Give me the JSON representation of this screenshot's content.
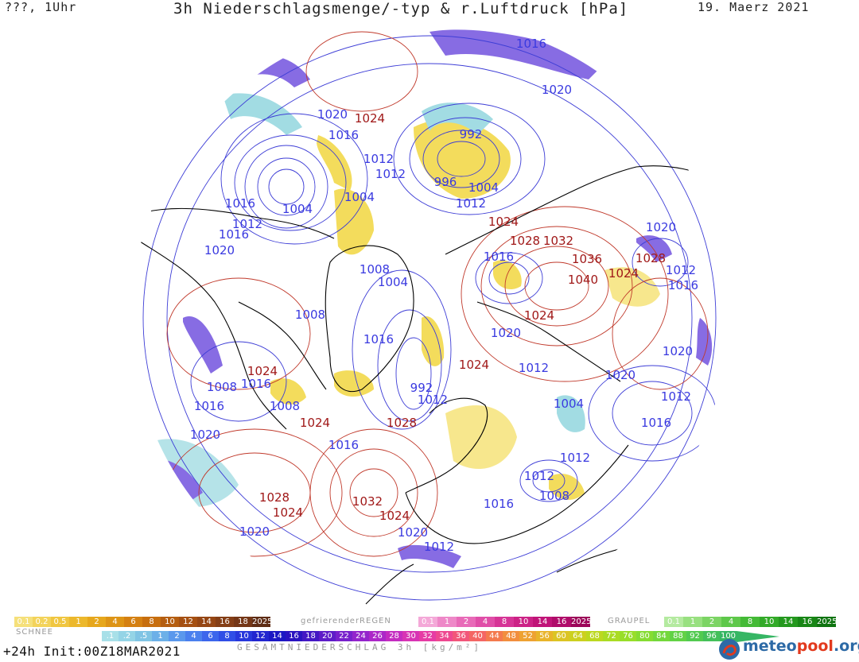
{
  "header": {
    "top_left": "???, 1Uhr",
    "title": "3h Niederschlagsmenge/-typ & r.Luftdruck [hPa]",
    "date": "19. Maerz 2021"
  },
  "pressure_labels": [
    {
      "text": "1016",
      "kind": "low"
    },
    {
      "text": "1020",
      "kind": "low"
    },
    {
      "text": "1020",
      "kind": "low"
    },
    {
      "text": "1024",
      "kind": "high"
    },
    {
      "text": "1016",
      "kind": "low"
    },
    {
      "text": "992",
      "kind": "low"
    },
    {
      "text": "1012",
      "kind": "low"
    },
    {
      "text": "1012",
      "kind": "low"
    },
    {
      "text": "996",
      "kind": "low"
    },
    {
      "text": "1004",
      "kind": "low"
    },
    {
      "text": "1004",
      "kind": "low"
    },
    {
      "text": "1012",
      "kind": "low"
    },
    {
      "text": "1004",
      "kind": "low"
    },
    {
      "text": "1016",
      "kind": "low"
    },
    {
      "text": "1012",
      "kind": "low"
    },
    {
      "text": "1016",
      "kind": "low"
    },
    {
      "text": "1020",
      "kind": "low"
    },
    {
      "text": "1024",
      "kind": "high"
    },
    {
      "text": "1028",
      "kind": "high"
    },
    {
      "text": "1032",
      "kind": "high"
    },
    {
      "text": "1016",
      "kind": "low"
    },
    {
      "text": "1036",
      "kind": "high"
    },
    {
      "text": "1028",
      "kind": "high"
    },
    {
      "text": "1020",
      "kind": "low"
    },
    {
      "text": "1040",
      "kind": "high"
    },
    {
      "text": "1024",
      "kind": "high"
    },
    {
      "text": "1012",
      "kind": "low"
    },
    {
      "text": "1016",
      "kind": "low"
    },
    {
      "text": "1008",
      "kind": "low"
    },
    {
      "text": "1004",
      "kind": "low"
    },
    {
      "text": "1008",
      "kind": "low"
    },
    {
      "text": "1024",
      "kind": "high"
    },
    {
      "text": "1016",
      "kind": "low"
    },
    {
      "text": "1020",
      "kind": "low"
    },
    {
      "text": "1024",
      "kind": "high"
    },
    {
      "text": "1024",
      "kind": "high"
    },
    {
      "text": "1020",
      "kind": "low"
    },
    {
      "text": "1012",
      "kind": "low"
    },
    {
      "text": "1008",
      "kind": "low"
    },
    {
      "text": "1016",
      "kind": "low"
    },
    {
      "text": "1008",
      "kind": "low"
    },
    {
      "text": "1016",
      "kind": "low"
    },
    {
      "text": "992",
      "kind": "low"
    },
    {
      "text": "1012",
      "kind": "low"
    },
    {
      "text": "1020",
      "kind": "low"
    },
    {
      "text": "1012",
      "kind": "low"
    },
    {
      "text": "1004",
      "kind": "low"
    },
    {
      "text": "1012",
      "kind": "low"
    },
    {
      "text": "1016",
      "kind": "low"
    },
    {
      "text": "1024",
      "kind": "high"
    },
    {
      "text": "1028",
      "kind": "high"
    },
    {
      "text": "1020",
      "kind": "low"
    },
    {
      "text": "1012",
      "kind": "low"
    },
    {
      "text": "1008",
      "kind": "low"
    },
    {
      "text": "1016",
      "kind": "low"
    },
    {
      "text": "1016",
      "kind": "low"
    },
    {
      "text": "1028",
      "kind": "high"
    },
    {
      "text": "1024",
      "kind": "high"
    },
    {
      "text": "1032",
      "kind": "high"
    },
    {
      "text": "1024",
      "kind": "high"
    },
    {
      "text": "1020",
      "kind": "low"
    },
    {
      "text": "1012",
      "kind": "low"
    },
    {
      "text": "1020",
      "kind": "low"
    }
  ],
  "legend": {
    "snow": {
      "tag": "SCHNEE",
      "cells": [
        {
          "t": "0.1",
          "c": "#f5e07a"
        },
        {
          "t": "0.2",
          "c": "#f3d35a"
        },
        {
          "t": "0.5",
          "c": "#f0c640"
        },
        {
          "t": "1",
          "c": "#ecb82c"
        },
        {
          "t": "2",
          "c": "#e6a71c"
        },
        {
          "t": "4",
          "c": "#dd9416"
        },
        {
          "t": "6",
          "c": "#d48012"
        },
        {
          "t": "8",
          "c": "#c76e0e"
        },
        {
          "t": "10",
          "c": "#b55e10"
        },
        {
          "t": "12",
          "c": "#a55012"
        },
        {
          "t": "14",
          "c": "#954614"
        },
        {
          "t": "16",
          "c": "#843e16"
        },
        {
          "t": "18",
          "c": "#743616"
        },
        {
          "t": "2025+",
          "c": "#5e2c14"
        }
      ]
    },
    "freezing_rain": {
      "tag": "gefrierenderREGEN",
      "cells": [
        {
          "t": "0.1",
          "c": "#f4a8d8"
        },
        {
          "t": "1",
          "c": "#ee88c8"
        },
        {
          "t": "2",
          "c": "#e86ab8"
        },
        {
          "t": "4",
          "c": "#e04ea8"
        },
        {
          "t": "8",
          "c": "#d63496"
        },
        {
          "t": "10",
          "c": "#cc2286"
        },
        {
          "t": "14",
          "c": "#c01478"
        },
        {
          "t": "16",
          "c": "#b00c6a"
        },
        {
          "t": "2025+",
          "c": "#9c0658"
        }
      ]
    },
    "graupel": {
      "tag": "GRAUPEL",
      "cells": [
        {
          "t": "0.1",
          "c": "#b4eaa0"
        },
        {
          "t": "1",
          "c": "#98e080"
        },
        {
          "t": "2",
          "c": "#7cd464"
        },
        {
          "t": "4",
          "c": "#5ec84a"
        },
        {
          "t": "8",
          "c": "#44ba36"
        },
        {
          "t": "10",
          "c": "#32aa28"
        },
        {
          "t": "14",
          "c": "#24981e"
        },
        {
          "t": "16",
          "c": "#188616"
        },
        {
          "t": "2025+",
          "c": "#0e7410"
        }
      ]
    },
    "total": {
      "tag": "GESAMTNIEDERSCHLAG 3h [kg/m²]",
      "cells": [
        {
          "t": ".1",
          "c": "#a8e0e8"
        },
        {
          "t": ".2",
          "c": "#94d4e6"
        },
        {
          "t": ".5",
          "c": "#80c4e4"
        },
        {
          "t": "1",
          "c": "#6cb0e8"
        },
        {
          "t": "2",
          "c": "#5a98ec"
        },
        {
          "t": "4",
          "c": "#4a80ee"
        },
        {
          "t": "6",
          "c": "#3c66ec"
        },
        {
          "t": "8",
          "c": "#304ee6"
        },
        {
          "t": "10",
          "c": "#2838dc"
        },
        {
          "t": "12",
          "c": "#2226d0"
        },
        {
          "t": "14",
          "c": "#1c18c4"
        },
        {
          "t": "16",
          "c": "#2a14c0"
        },
        {
          "t": "18",
          "c": "#4418c4"
        },
        {
          "t": "20",
          "c": "#5e1cc8"
        },
        {
          "t": "22",
          "c": "#7820cc"
        },
        {
          "t": "24",
          "c": "#9424cc"
        },
        {
          "t": "26",
          "c": "#ac28c8"
        },
        {
          "t": "28",
          "c": "#c42cc0"
        },
        {
          "t": "30",
          "c": "#d834b4"
        },
        {
          "t": "32",
          "c": "#e63ca4"
        },
        {
          "t": "34",
          "c": "#ee4890"
        },
        {
          "t": "36",
          "c": "#f2567a"
        },
        {
          "t": "40",
          "c": "#f46664"
        },
        {
          "t": "44",
          "c": "#f47a4e"
        },
        {
          "t": "48",
          "c": "#f28e3e"
        },
        {
          "t": "52",
          "c": "#eea232"
        },
        {
          "t": "56",
          "c": "#e8b42a"
        },
        {
          "t": "60",
          "c": "#dcc424"
        },
        {
          "t": "64",
          "c": "#ccd020"
        },
        {
          "t": "68",
          "c": "#bcd820"
        },
        {
          "t": "72",
          "c": "#aadc24"
        },
        {
          "t": "76",
          "c": "#98de2a"
        },
        {
          "t": "80",
          "c": "#86dc32"
        },
        {
          "t": "84",
          "c": "#74d83c"
        },
        {
          "t": "88",
          "c": "#62d246"
        },
        {
          "t": "92",
          "c": "#52ca50"
        },
        {
          "t": "96",
          "c": "#44c05a"
        },
        {
          "t": "100",
          "c": "#36b664"
        }
      ]
    }
  },
  "footer": {
    "run_info": "+24h  Init:00Z18MAR2021",
    "logo_a": "meteo",
    "logo_b": "pool",
    "logo_c": ".org"
  },
  "colors": {
    "isobar": "#3d3dd6",
    "isobar_high": "#c0392b",
    "label_low": "#3a3ae0",
    "label_high": "#a01818",
    "coast": "#000000",
    "precip_yellow": "#f2d94a",
    "precip_cyan": "#98d8e0",
    "precip_violet": "#7a5ce0"
  }
}
